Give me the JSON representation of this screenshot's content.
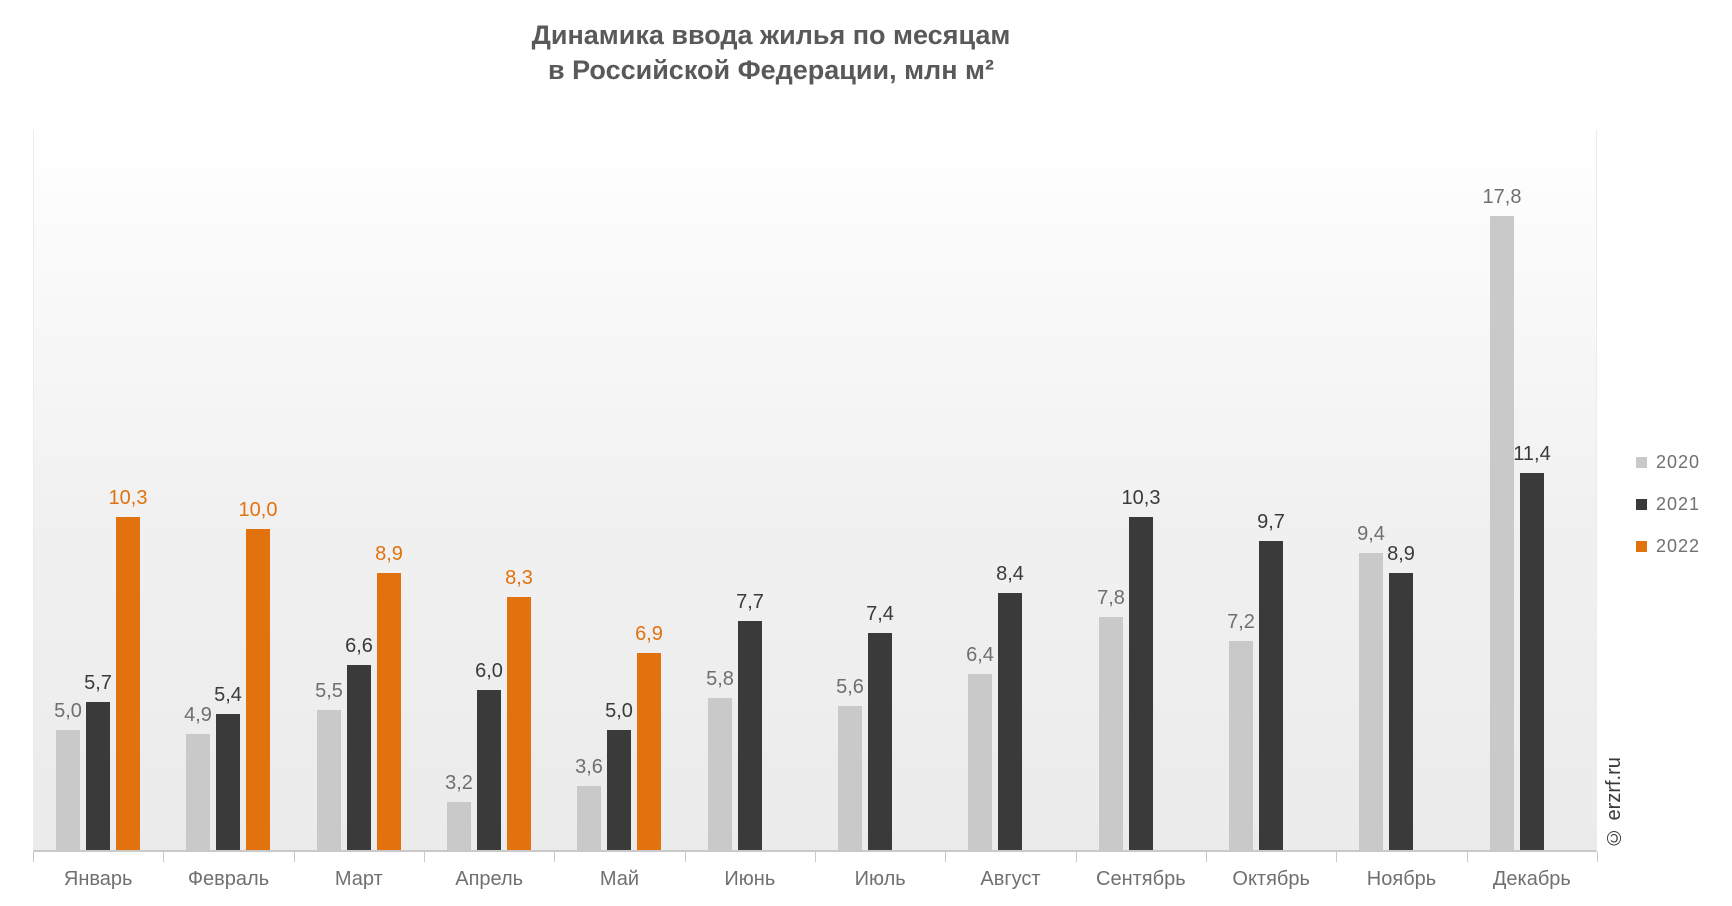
{
  "title": {
    "line1": "Динамика ввода жилья по месяцам",
    "line2": "в Российской Федерации, млн м²"
  },
  "copyright": "© erzrf.ru",
  "legend": [
    {
      "label": "2020",
      "color": "#c9c9c9"
    },
    {
      "label": "2021",
      "color": "#3a3a3a"
    },
    {
      "label": "2022",
      "color": "#e2720e"
    }
  ],
  "chart_data": {
    "type": "bar",
    "title": "Динамика ввода жилья по месяцам в Российской Федерации, млн м²",
    "categories": [
      "Январь",
      "Февраль",
      "Март",
      "Апрель",
      "Май",
      "Июнь",
      "Июль",
      "Август",
      "Сентябрь",
      "Октябрь",
      "Ноябрь",
      "Декабрь"
    ],
    "series": [
      {
        "name": "2020",
        "color": "#c9c9c9",
        "label_color": "#6f6f6f",
        "values": [
          5.0,
          4.9,
          5.5,
          3.2,
          3.6,
          5.8,
          5.6,
          6.4,
          7.8,
          7.2,
          9.4,
          17.8
        ]
      },
      {
        "name": "2021",
        "color": "#3a3a3a",
        "label_color": "#3a3a3a",
        "values": [
          5.7,
          5.4,
          6.6,
          6.0,
          5.0,
          7.7,
          7.4,
          8.4,
          10.3,
          9.7,
          8.9,
          11.4
        ]
      },
      {
        "name": "2022",
        "color": "#e2720e",
        "label_color": "#e2720e",
        "values": [
          10.3,
          10.0,
          8.9,
          8.3,
          6.9,
          null,
          null,
          null,
          null,
          null,
          null,
          null
        ]
      }
    ],
    "ylim": [
      2,
      20
    ],
    "grid": false,
    "value_labels": true,
    "decimal_separator": ",",
    "legend_position": "right",
    "xlabel": "",
    "ylabel": ""
  }
}
